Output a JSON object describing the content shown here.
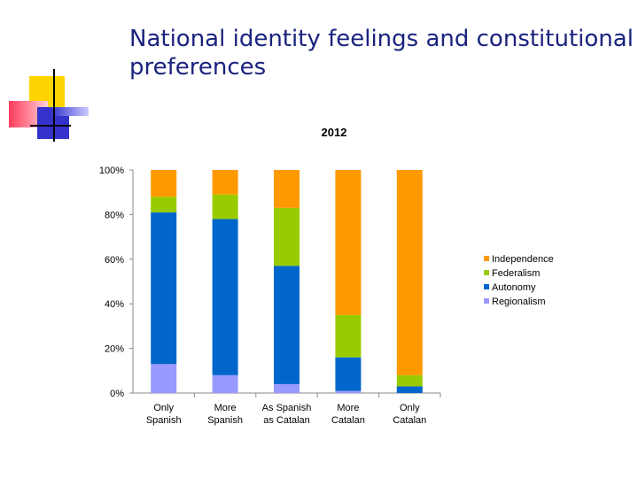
{
  "slide": {
    "title_line1": "National identity feelings and constitutional",
    "title_line2": "preferences"
  },
  "colors": {
    "title": "#1a237e",
    "Regionalism": "#9999ff",
    "Autonomy": "#0066cc",
    "Federalism": "#99cc00",
    "Independence": "#ff9900"
  },
  "chart_data": {
    "type": "bar",
    "stacked": true,
    "title": "2012",
    "xlabel": "",
    "ylabel": "",
    "ylim": [
      0,
      100
    ],
    "y_ticks": [
      "0%",
      "20%",
      "40%",
      "60%",
      "80%",
      "100%"
    ],
    "categories": [
      [
        "Only",
        "Spanish"
      ],
      [
        "More",
        "Spanish"
      ],
      [
        "As Spanish",
        "as Catalan"
      ],
      [
        "More",
        "Catalan"
      ],
      [
        "Only",
        "Catalan"
      ]
    ],
    "series": [
      {
        "name": "Regionalism",
        "values": [
          13,
          8,
          4,
          1,
          0
        ]
      },
      {
        "name": "Autonomy",
        "values": [
          68,
          70,
          53,
          15,
          3
        ]
      },
      {
        "name": "Federalism",
        "values": [
          7,
          11,
          26,
          19,
          5
        ]
      },
      {
        "name": "Independence",
        "values": [
          12,
          11,
          17,
          65,
          92
        ]
      }
    ],
    "legend_order": [
      "Independence",
      "Federalism",
      "Autonomy",
      "Regionalism"
    ],
    "legend_position": "right"
  }
}
